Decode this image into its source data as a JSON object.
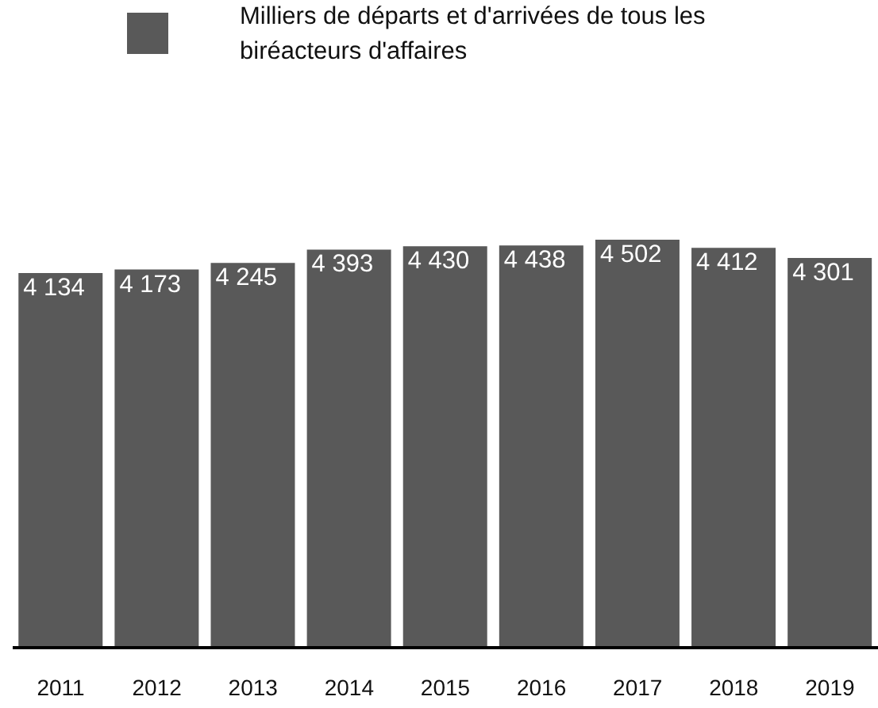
{
  "chart_data": {
    "type": "bar",
    "categories": [
      "2011",
      "2012",
      "2013",
      "2014",
      "2015",
      "2016",
      "2017",
      "2018",
      "2019"
    ],
    "series": [
      {
        "name": "Milliers de départs et d'arrivées de tous les biréacteurs d'affaires",
        "color": "#595959",
        "values": [
          4134,
          4173,
          4245,
          4393,
          4430,
          4438,
          4502,
          4412,
          4301
        ],
        "value_labels": [
          "4 134",
          "4 173",
          "4 245",
          "4 393",
          "4 430",
          "4 438",
          "4 502",
          "4 412",
          "4 301"
        ]
      }
    ],
    "legend": "top",
    "grid": false
  }
}
